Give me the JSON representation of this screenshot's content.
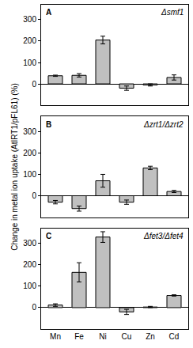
{
  "chart_data": [
    {
      "type": "bar",
      "panel": "A",
      "title": "Δsmf1",
      "categories": [
        "Mn",
        "Fe",
        "Ni",
        "Cu",
        "Zn",
        "Cd"
      ],
      "values": [
        38,
        40,
        205,
        -20,
        -5,
        30
      ],
      "errors": [
        3,
        8,
        18,
        10,
        5,
        12
      ],
      "color": "#c0c0c0",
      "ylim": [
        -100,
        370
      ],
      "yticks": [
        0,
        100,
        200,
        300
      ],
      "grid": false,
      "tick_labels": "y"
    },
    {
      "type": "bar",
      "panel": "B",
      "title": "Δzrt1/Δzrt2",
      "y_label": "Change in metal ion uptake (AtIRT1/pFL61) (%)",
      "categories": [
        "Mn",
        "Fe",
        "Ni",
        "Cu",
        "Zn",
        "Cd"
      ],
      "values": [
        -30,
        -60,
        70,
        -30,
        130,
        20
      ],
      "errors": [
        8,
        12,
        30,
        10,
        8,
        5
      ],
      "color": "#c0c0c0",
      "ylim": [
        -100,
        370
      ],
      "yticks": [
        0,
        100,
        200,
        300
      ],
      "grid": false,
      "tick_labels": "y"
    },
    {
      "type": "bar",
      "panel": "C",
      "title": "Δfet3/Δfet4",
      "categories": [
        "Mn",
        "Fe",
        "Ni",
        "Cu",
        "Zn",
        "Cd"
      ],
      "values": [
        12,
        165,
        330,
        -20,
        3,
        57
      ],
      "errors": [
        6,
        45,
        25,
        12,
        3,
        3
      ],
      "color": "#c0c0c0",
      "ylim": [
        -100,
        370
      ],
      "yticks": [
        0,
        100,
        200,
        300
      ],
      "grid": false
    }
  ]
}
